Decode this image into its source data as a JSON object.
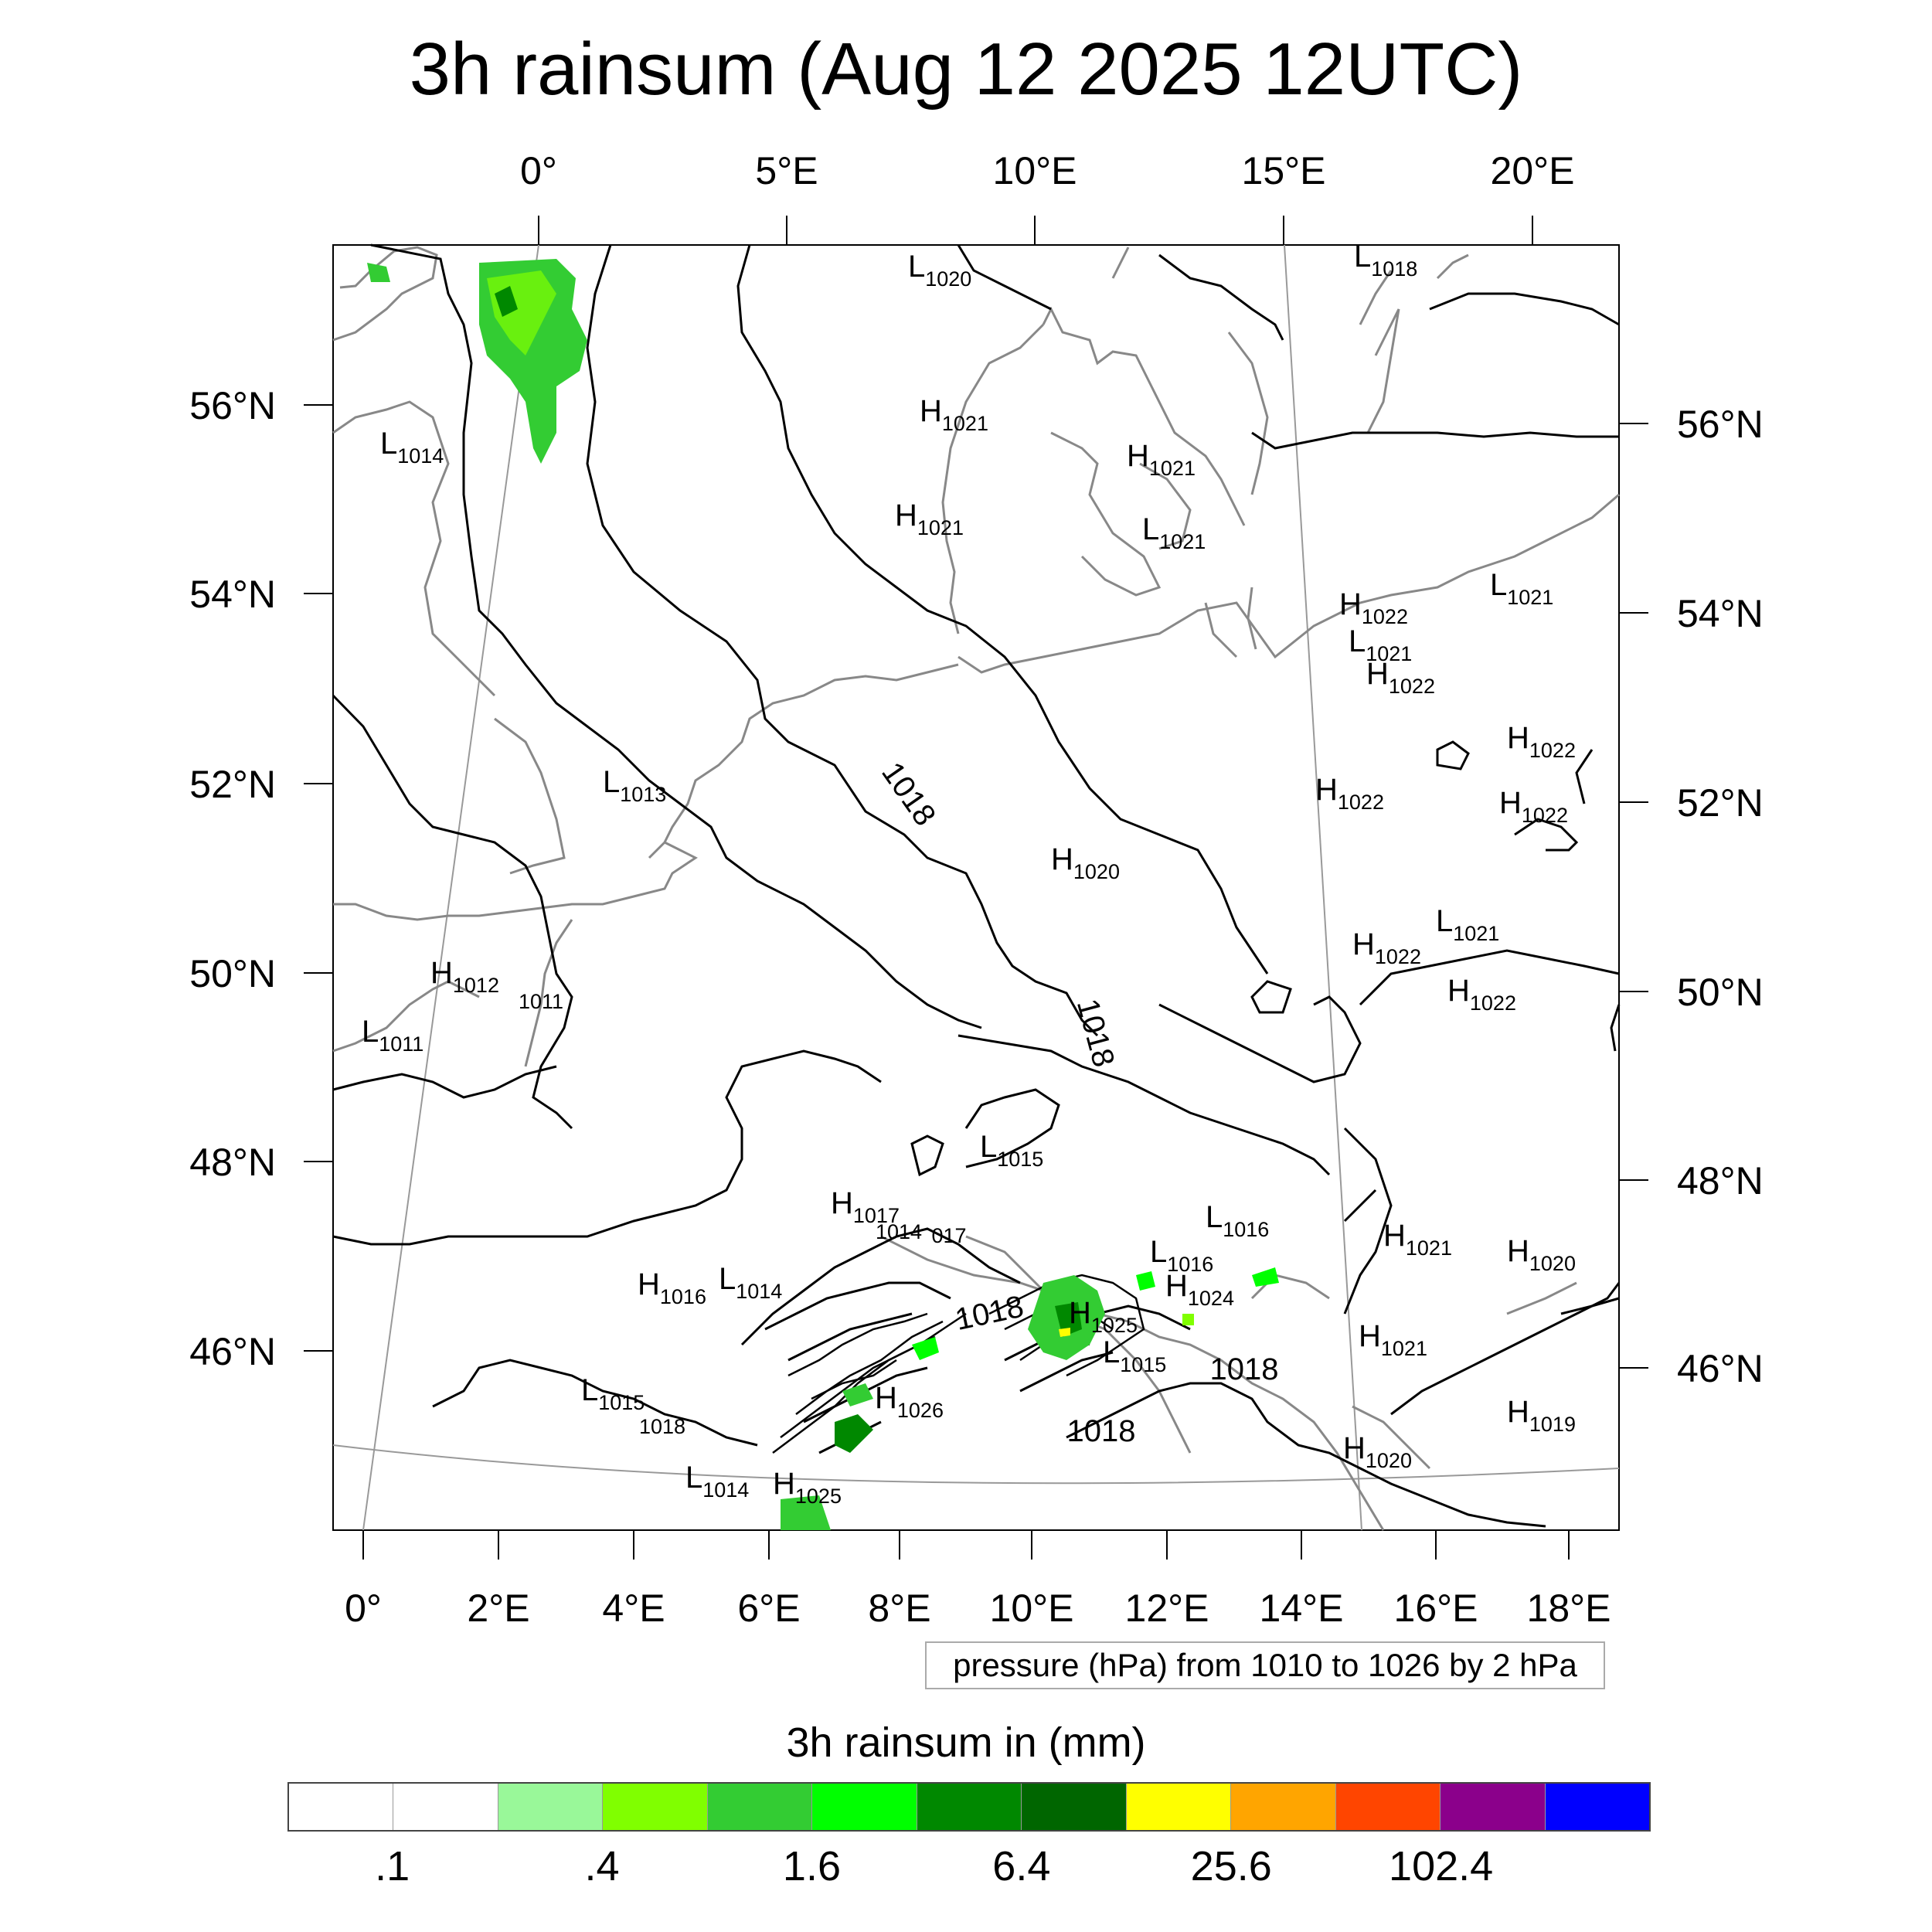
{
  "title": "3h rainsum (Aug 12 2025 12UTC)",
  "pressure_note": "pressure (hPa) from 1010 to 1026 by 2 hPa",
  "colorbar": {
    "title": "3h rainsum in (mm)",
    "colors": [
      "#ffffff",
      "#ffffff",
      "#99f899",
      "#80ff00",
      "#33cc33",
      "#00ff00",
      "#008800",
      "#006600",
      "#ffff00",
      "#ffa500",
      "#ff4500",
      "#8b008b",
      "#0000ff"
    ],
    "tick_labels": [
      ".1",
      ".4",
      "1.6",
      "6.4",
      "25.6",
      "102.4"
    ]
  },
  "axes": {
    "top_lon_labels": [
      "0°",
      "5°E",
      "10°E",
      "15°E",
      "20°E"
    ],
    "bottom_lon_labels": [
      "0°",
      "2°E",
      "4°E",
      "6°E",
      "8°E",
      "10°E",
      "12°E",
      "14°E",
      "16°E",
      "18°E"
    ],
    "left_lat_labels": [
      "56°N",
      "54°N",
      "52°N",
      "50°N",
      "48°N",
      "46°N"
    ],
    "right_lat_labels": [
      "56°N",
      "54°N",
      "52°N",
      "50°N",
      "48°N",
      "46°N"
    ]
  },
  "pressure_centers": [
    {
      "type": "L",
      "value": "1020"
    },
    {
      "type": "L",
      "value": "1018"
    },
    {
      "type": "H",
      "value": "1021"
    },
    {
      "type": "H",
      "value": "1021"
    },
    {
      "type": "H",
      "value": "1021"
    },
    {
      "type": "L",
      "value": "1021"
    },
    {
      "type": "L",
      "value": "1014"
    },
    {
      "type": "H",
      "value": "1022"
    },
    {
      "type": "L",
      "value": "1021"
    },
    {
      "type": "H",
      "value": "1022"
    },
    {
      "type": "L",
      "value": "1021"
    },
    {
      "type": "H",
      "value": "1022"
    },
    {
      "type": "H",
      "value": "1022"
    },
    {
      "type": "H",
      "value": "1022"
    },
    {
      "type": "L",
      "value": "1013"
    },
    {
      "type": "H",
      "value": "1020"
    },
    {
      "type": "H",
      "value": "1022"
    },
    {
      "type": "L",
      "value": "1021"
    },
    {
      "type": "H",
      "value": "1022"
    },
    {
      "type": "H",
      "value": "1012"
    },
    {
      "type": "L",
      "value": "1011"
    },
    {
      "type": "L",
      "value": "1015"
    },
    {
      "type": "H",
      "value": "1017"
    },
    {
      "type": "L",
      "value": "1016"
    },
    {
      "type": "H",
      "value": "1021"
    },
    {
      "type": "L",
      "value": "1016"
    },
    {
      "type": "H",
      "value": "1020"
    },
    {
      "type": "H",
      "value": "1016"
    },
    {
      "type": "L",
      "value": "1014"
    },
    {
      "type": "H",
      "value": "1024"
    },
    {
      "type": "H",
      "value": "1025"
    },
    {
      "type": "H",
      "value": "1021"
    },
    {
      "type": "L",
      "value": "1015"
    },
    {
      "type": "L",
      "value": "1015"
    },
    {
      "type": "H",
      "value": "1026"
    },
    {
      "type": "H",
      "value": "1019"
    },
    {
      "type": "H",
      "value": "1020"
    },
    {
      "type": "L",
      "value": "1014"
    },
    {
      "type": "H",
      "value": "1025"
    }
  ],
  "contour_labels": [
    "1018",
    "1018",
    "1018",
    "1018",
    "1018",
    "1011",
    "1014",
    "017",
    "1018"
  ]
}
